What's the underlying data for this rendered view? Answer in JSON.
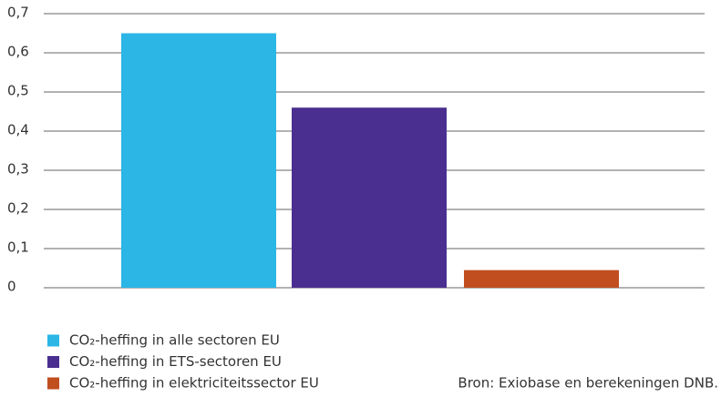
{
  "chart_data": {
    "type": "bar",
    "categories": [
      null
    ],
    "series": [
      {
        "name": "CO₂-heffing in alle sectoren EU",
        "color": "#2bb6e6",
        "values": [
          0.65
        ]
      },
      {
        "name": "CO₂-heffing in ETS-sectoren EU",
        "color": "#4a2f90",
        "values": [
          0.46
        ]
      },
      {
        "name": "CO₂-heffing in elektriciteitssector EU",
        "color": "#c04e1f",
        "values": [
          0.045
        ]
      }
    ],
    "ylim": [
      0,
      0.7
    ],
    "yticks": [
      0,
      {
        "value": 0.1,
        "label": "0,1"
      },
      {
        "value": 0.2,
        "label": "0,2"
      },
      {
        "value": 0.3,
        "label": "0,3"
      },
      {
        "value": 0.4,
        "label": "0,4"
      },
      {
        "value": 0.5,
        "label": "0,5"
      },
      {
        "value": 0.6,
        "label": "0,6"
      },
      {
        "value": 0.7,
        "label": "0,7"
      }
    ],
    "grid": true,
    "source": "Bron: Exiobase en berekeningen DNB."
  }
}
